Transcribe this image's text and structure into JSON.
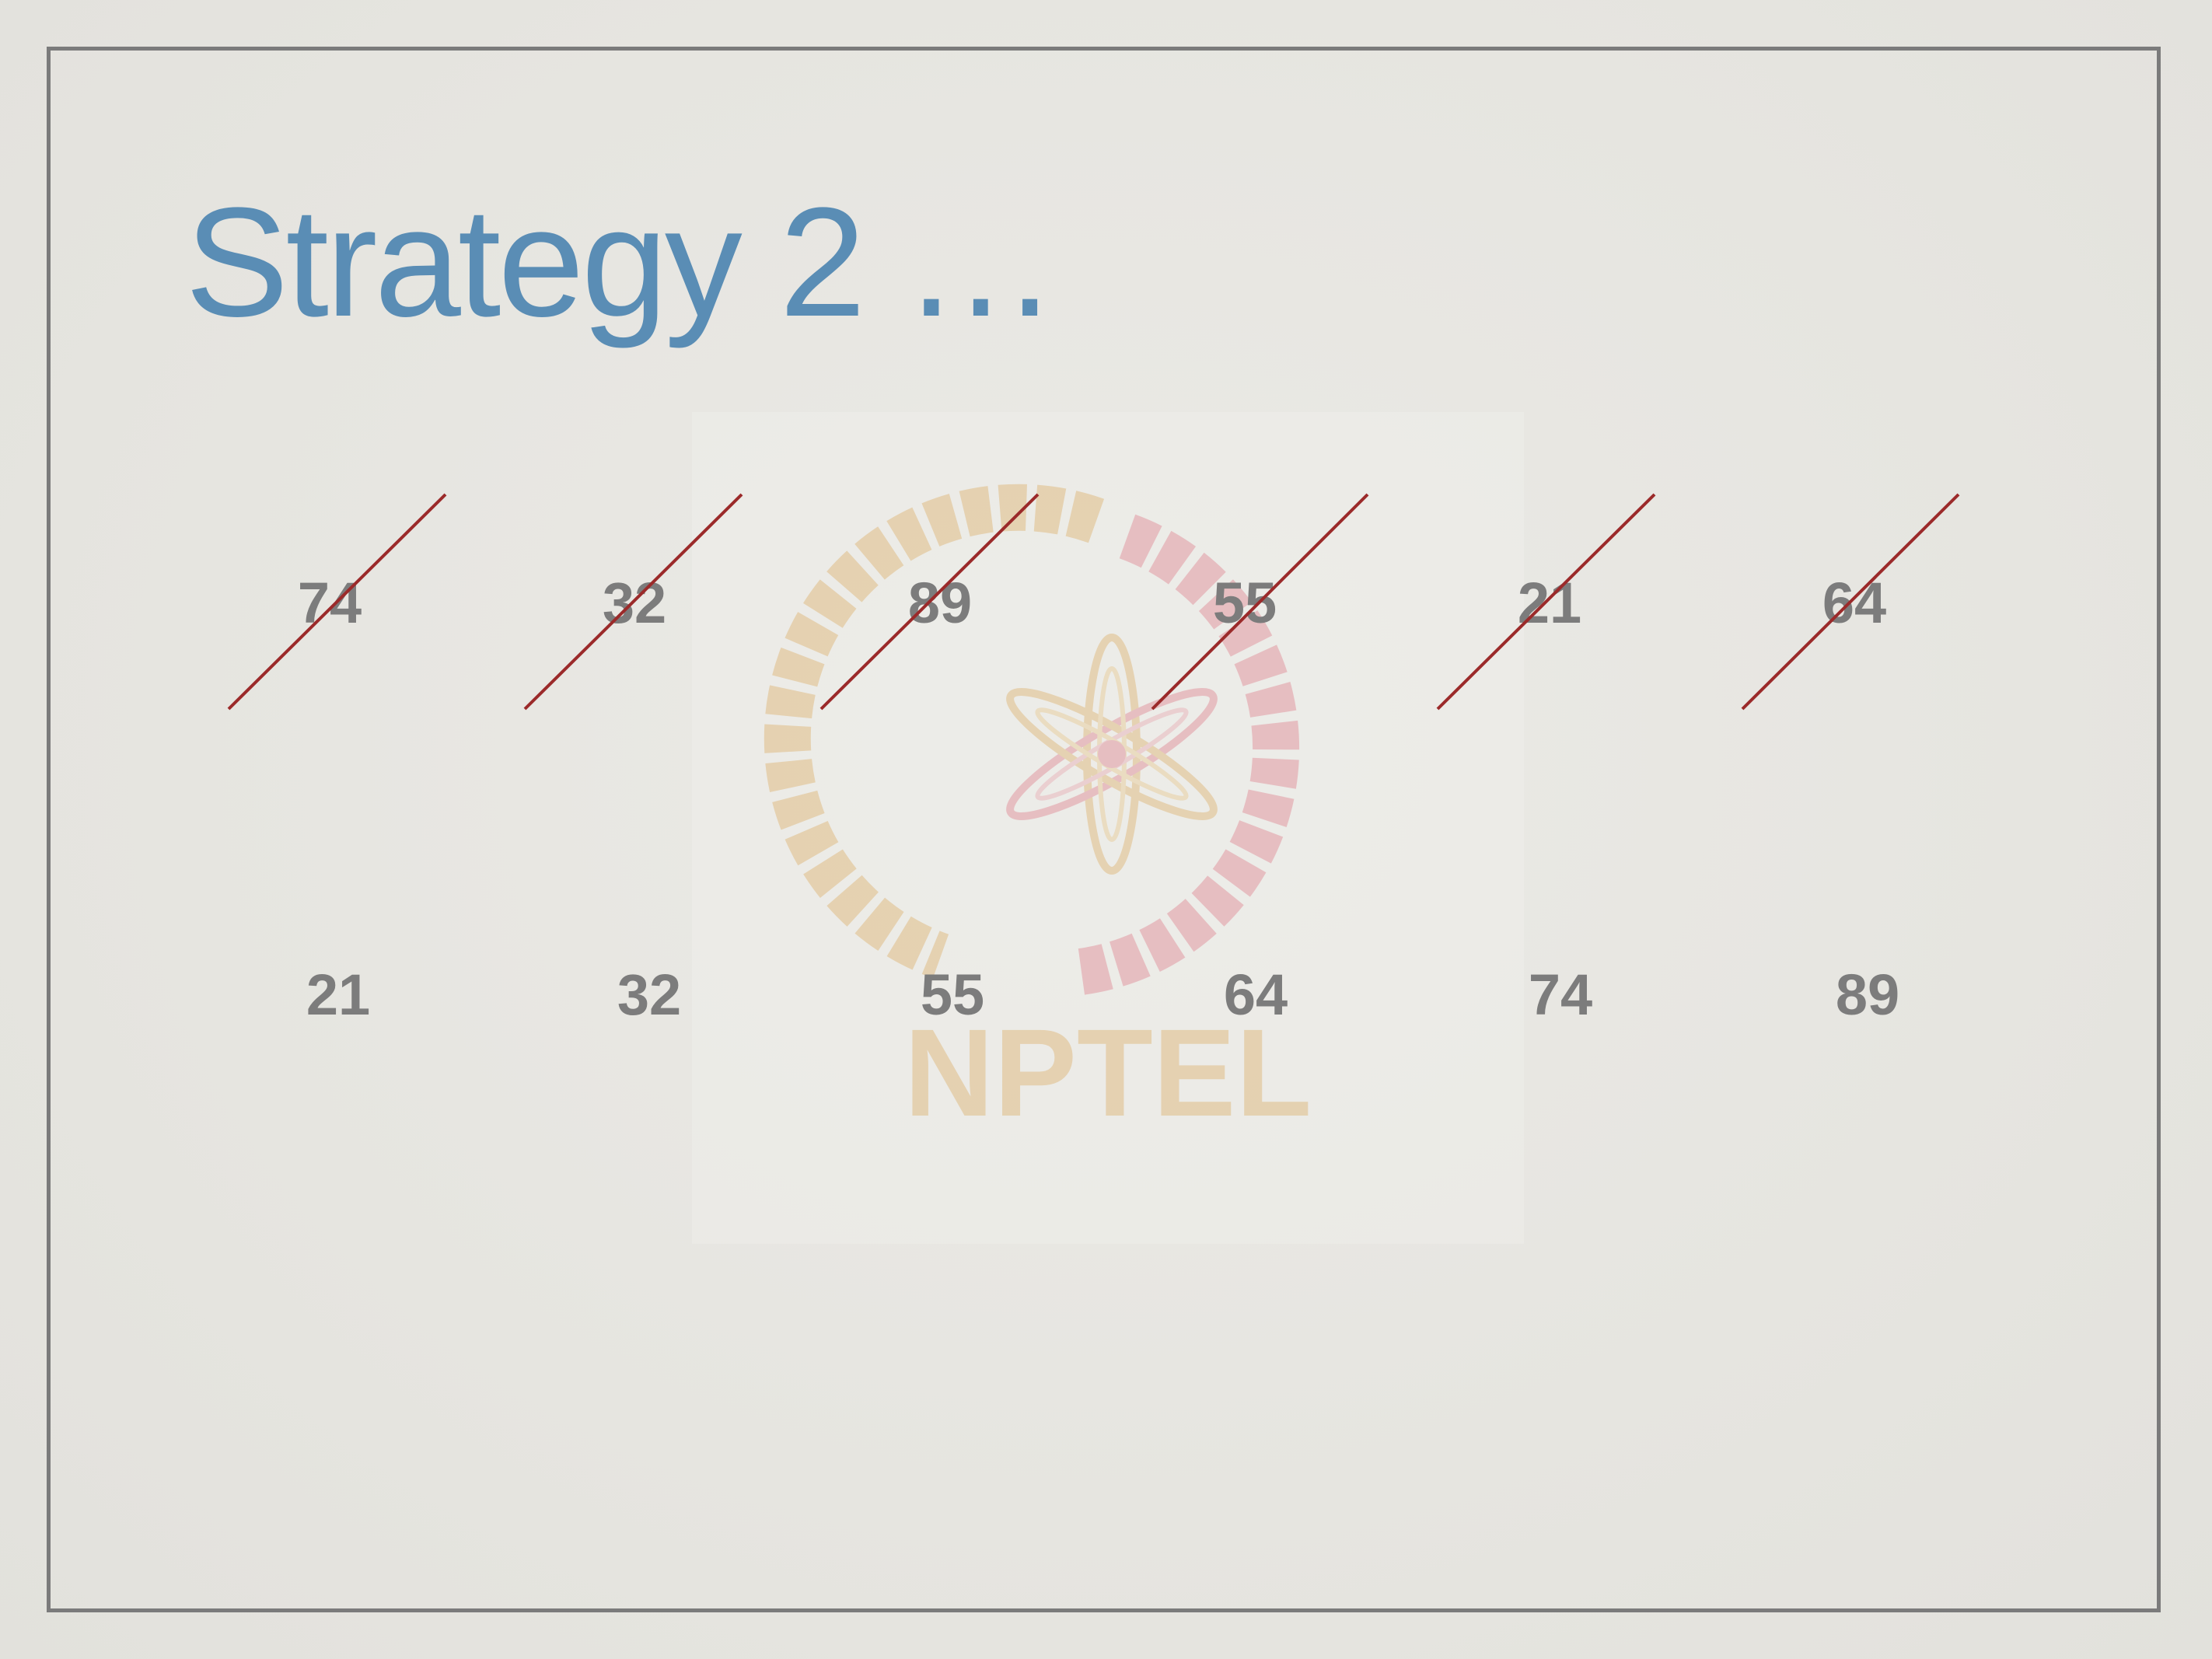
{
  "slide": {
    "title": "Strategy 2 …",
    "watermark_text": "NPTEL",
    "colors": {
      "title": "#5a8db5",
      "numbers": "#7c7c7c",
      "strike": "#9b2a2a",
      "frame": "#7b7b7b",
      "background": "#e7e6e1"
    }
  },
  "original_sequence": [
    "74",
    "32",
    "89",
    "55",
    "21",
    "64"
  ],
  "sorted_sequence": [
    "21",
    "32",
    "55",
    "64",
    "74",
    "89"
  ]
}
